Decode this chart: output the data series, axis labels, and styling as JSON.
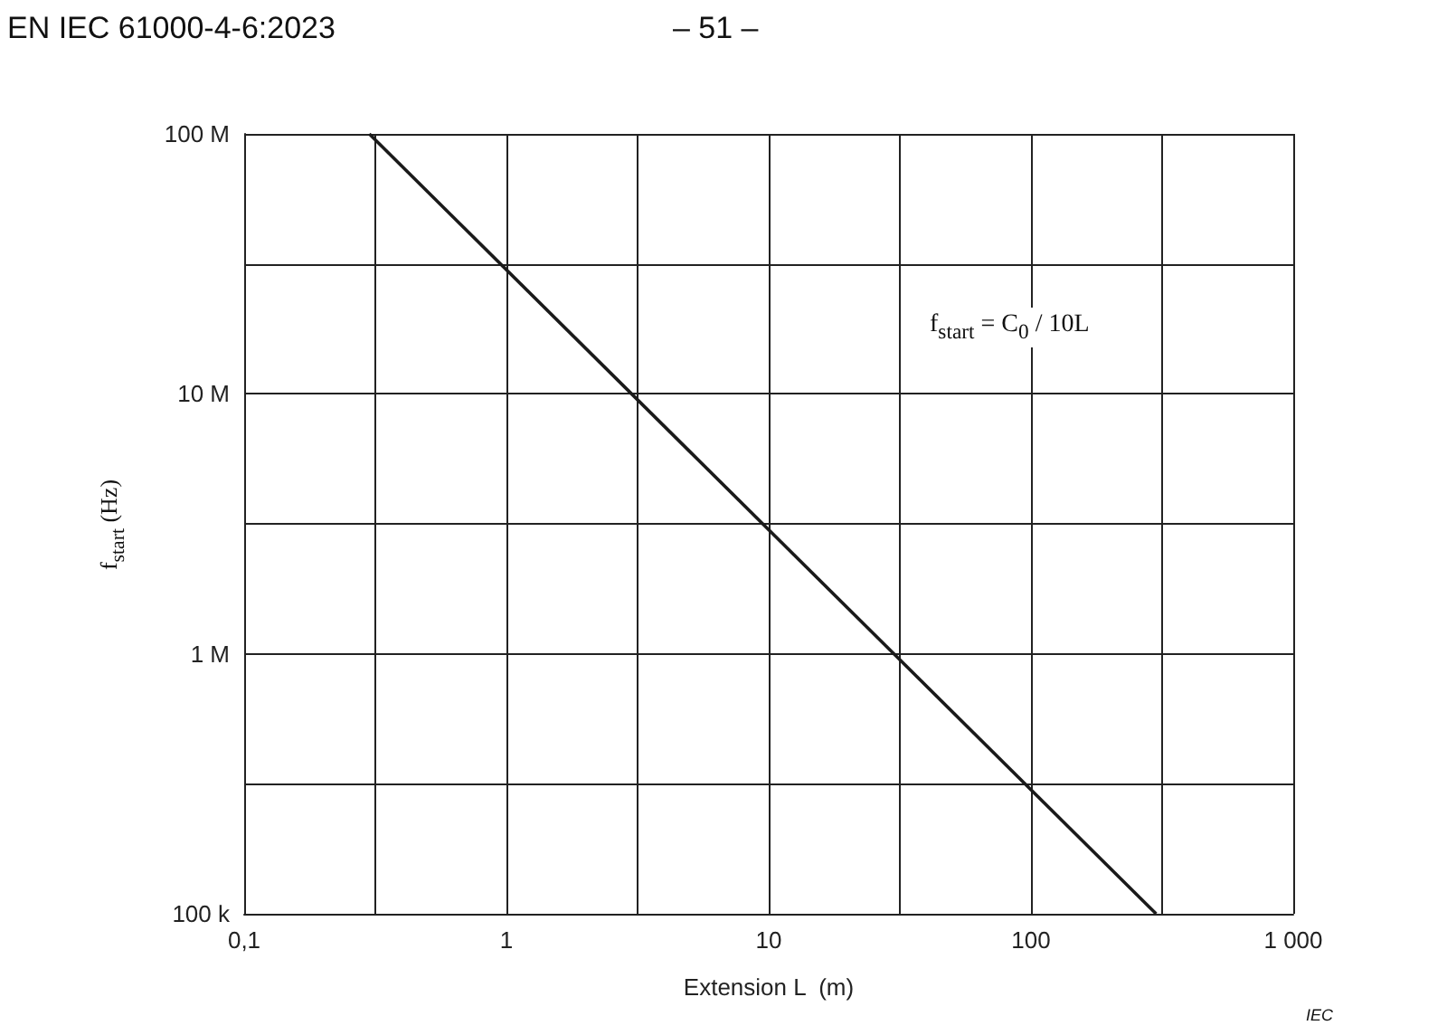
{
  "chart_data": {
    "type": "line",
    "xlabel": "Extension L  (m)",
    "ylabel": "f$_{start}$ (Hz)",
    "x": [
      0.3,
      300
    ],
    "series": [
      {
        "color": "#1a1a1a",
        "values": [
          100000000,
          100000
        ]
      }
    ],
    "log": "xy",
    "grid": true,
    "marker": "none",
    "line_style": "solid",
    "xlim": [
      0.1,
      1000
    ],
    "xticks": [
      {
        "value": 0.1,
        "label": "0,1"
      },
      {
        "value": 0.316,
        "label": null
      },
      1,
      {
        "value": 3.16,
        "label": null
      },
      10,
      {
        "value": 31.6,
        "label": null
      },
      100,
      {
        "value": 316,
        "label": null
      },
      {
        "value": 1000,
        "label": "1 000"
      }
    ],
    "ylim": [
      100000,
      100000000
    ],
    "yticks": [
      {
        "value": 100000,
        "label": "100 k"
      },
      {
        "value": 316000,
        "label": null
      },
      {
        "value": 1000000,
        "label": "1 M"
      },
      {
        "value": 3160000,
        "label": null
      },
      {
        "value": 10000000,
        "label": "10 M"
      },
      {
        "value": 31600000,
        "label": null
      },
      {
        "value": 100000000,
        "label": "100 M"
      }
    ],
    "annotations": [
      "EN  IEC  61000-4-6:2023",
      "– 51 –",
      "f$_{start}$ = C$_{0}$ / 10L",
      "IEC"
    ]
  }
}
